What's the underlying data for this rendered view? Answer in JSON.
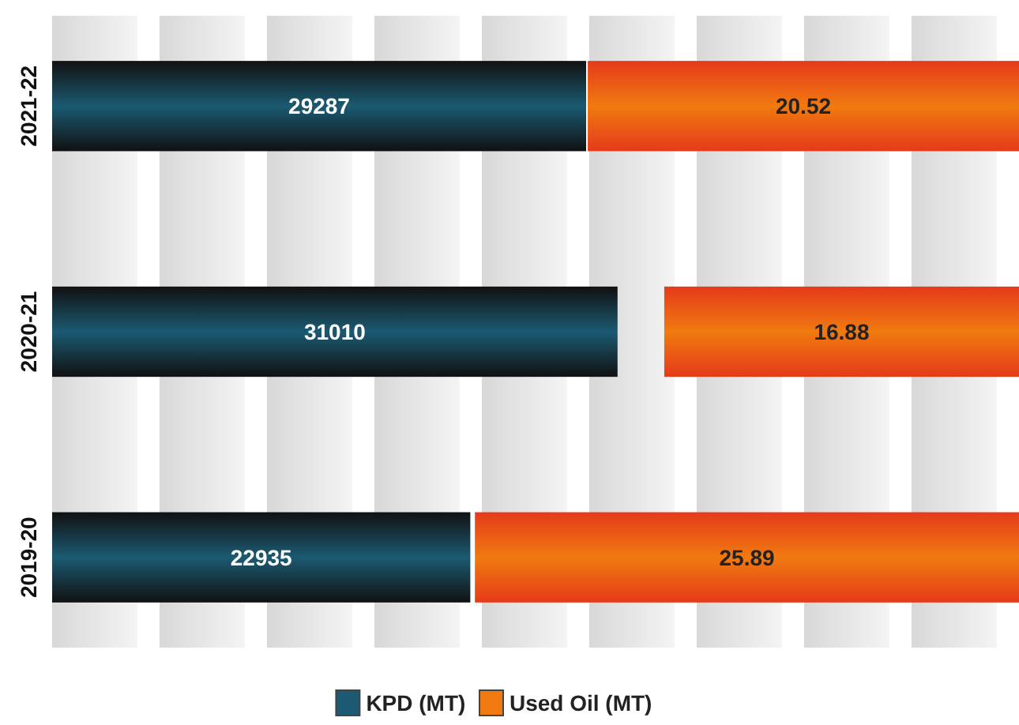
{
  "chart_data": [
    {
      "type": "bar",
      "orientation": "horizontal",
      "categories": [
        "2021-22",
        "2020-21",
        "2019-20"
      ],
      "series": [
        {
          "name": "KPD (MT)",
          "color": "#1b5a72",
          "values": [
            29287,
            31010,
            22935
          ]
        }
      ],
      "tick_labels": "y",
      "data_labels": true,
      "legend": "bottom"
    },
    {
      "type": "bar",
      "orientation": "horizontal",
      "categories": [
        "2021-22",
        "2020-21",
        "2019-20"
      ],
      "series": [
        {
          "name": "Used Oil (MT)",
          "color": "#f07a10",
          "values": [
            20.52,
            16.88,
            25.89
          ]
        }
      ],
      "tick_labels": false,
      "data_labels": true,
      "legend": "bottom"
    }
  ]
}
